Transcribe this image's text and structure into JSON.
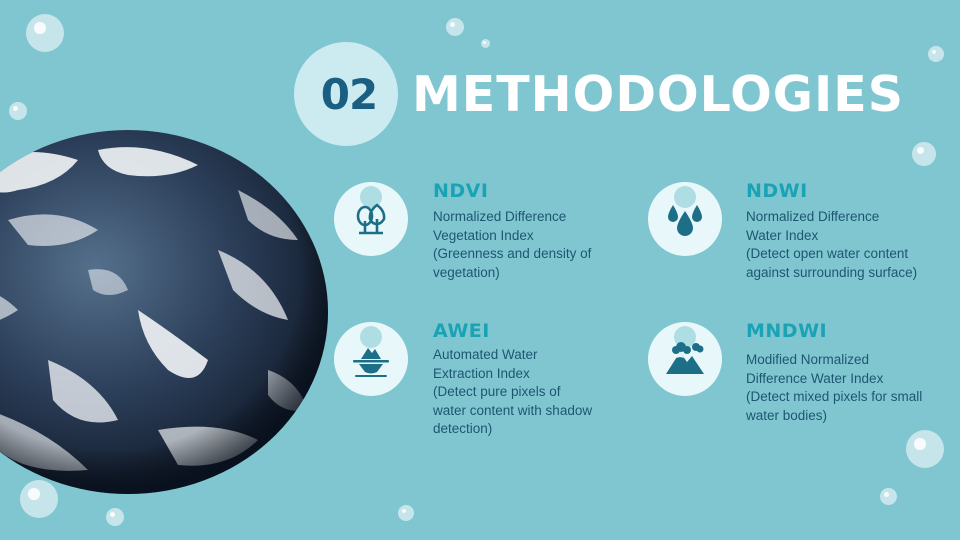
{
  "slide": {
    "number": "02",
    "title": "METHODOLOGIES"
  },
  "methods": [
    {
      "name": "NDVI",
      "line1": "Normalized Difference",
      "line2": "Vegetation Index",
      "line3": "(Greenness and density of",
      "line4": "vegetation)",
      "icon": "tree-icon"
    },
    {
      "name": "NDWI",
      "line1": "Normalized Difference",
      "line2": "Water Index",
      "line3": "(Detect open water content",
      "line4": "against surrounding surface)",
      "icon": "water-drops-icon"
    },
    {
      "name": "AWEI",
      "line1": "Automated Water",
      "line2": "Extraction Index",
      "line3": "(Detect pure pixels of",
      "line4": "water content with shadow",
      "line5": "detection)",
      "icon": "iceberg-icon"
    },
    {
      "name": "MNDWI",
      "line1": "Modified Normalized",
      "line2": "Difference Water Index",
      "line3": "(Detect mixed pixels for small",
      "line4": "water bodies)",
      "icon": "mountain-icon"
    }
  ],
  "colors": {
    "background": "#80c6d1",
    "accent": "#1aa3b4",
    "text": "#1d5670",
    "number": "#1a5f82"
  }
}
